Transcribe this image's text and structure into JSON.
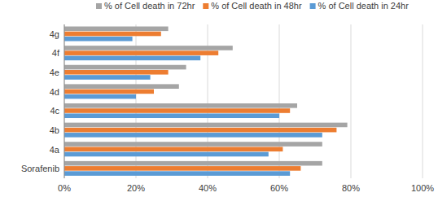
{
  "chart_data": {
    "type": "bar",
    "orientation": "horizontal",
    "categories": [
      "Sorafenib",
      "4a",
      "4b",
      "4c",
      "4d",
      "4e",
      "4f",
      "4g"
    ],
    "series": [
      {
        "name": "% of Cell death in 24hr",
        "color": "#5b9bd5",
        "values": [
          63,
          57,
          72,
          60,
          20,
          24,
          38,
          19
        ]
      },
      {
        "name": "% of Cell death in 48hr",
        "color": "#ed7d31",
        "values": [
          66,
          61,
          76,
          63,
          25,
          29,
          43,
          27
        ]
      },
      {
        "name": "% of Cell death in 72hr",
        "color": "#a5a5a5",
        "values": [
          72,
          72,
          79,
          65,
          32,
          34,
          47,
          29
        ]
      }
    ],
    "xlim": [
      0,
      100
    ],
    "xticks": [
      {
        "value": 0,
        "label": "0%"
      },
      {
        "value": 20,
        "label": "20%"
      },
      {
        "value": 40,
        "label": "40%"
      },
      {
        "value": 60,
        "label": "60%"
      },
      {
        "value": 80,
        "label": "80%"
      },
      {
        "value": 100,
        "label": "100%"
      }
    ],
    "grid": true,
    "legend": "top"
  }
}
